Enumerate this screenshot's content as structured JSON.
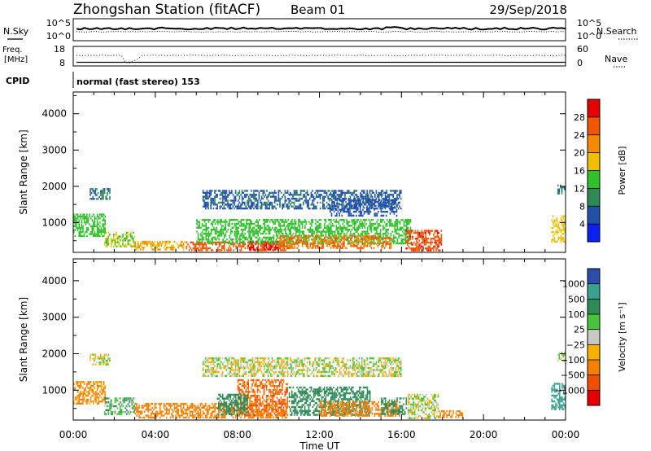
{
  "header": {
    "station": "Zhongshan Station (fitACF)",
    "beam": "Beam 01",
    "date": "29/Sep/2018"
  },
  "sky_panel": {
    "left_label": "N.Sky",
    "left_ticks": [
      "10^5",
      "10^0"
    ],
    "right_label": "N.Search",
    "right_ticks": [
      "10^5",
      "10^0"
    ]
  },
  "freq_panel": {
    "left_label_1": "Freq.",
    "left_label_2": "[MHz]",
    "left_ticks": [
      "18",
      "8"
    ],
    "right_label": "Nave",
    "right_ticks": [
      "60",
      "0"
    ]
  },
  "cpid": {
    "label": "CPID",
    "value": "normal (fast stereo) 153"
  },
  "time_axis": {
    "label": "Time UT",
    "ticks": [
      "00:00",
      "04:00",
      "08:00",
      "12:00",
      "16:00",
      "20:00",
      "00:00"
    ]
  },
  "colors": {
    "power": [
      "#0a20f0",
      "#2050a8",
      "#2e8a55",
      "#2fc02a",
      "#f0c000",
      "#f48a00",
      "#f25500",
      "#e80000"
    ],
    "velocity": [
      "#e80000",
      "#f24e00",
      "#f57f00",
      "#f7b000",
      "#c9c9c3",
      "#47c43a",
      "#2e8b58",
      "#3aa090",
      "#2b4ea8"
    ]
  },
  "chart_data": [
    {
      "type": "heatmap",
      "title": "",
      "quantity": "Power",
      "ylabel": "Slant Range [km]",
      "xlabel": "Time UT",
      "yticks": [
        1000,
        2000,
        3000,
        4000
      ],
      "ylim": [
        180,
        4600
      ],
      "xlim_hours": [
        0,
        24
      ],
      "colorbar": {
        "label": "Power [dB]",
        "ticks": [
          "4",
          "8",
          "12",
          "16",
          "20",
          "24",
          "28"
        ],
        "range": [
          0,
          32
        ]
      },
      "regions": [
        {
          "t0": 0.0,
          "t1": 1.6,
          "r0": 600,
          "r1": 1250,
          "level": 14
        },
        {
          "t0": 1.5,
          "t1": 3.0,
          "r0": 320,
          "r1": 750,
          "level": 16
        },
        {
          "t0": 3.0,
          "t1": 5.5,
          "r0": 250,
          "r1": 500,
          "level": 20
        },
        {
          "t0": 5.5,
          "t1": 10.5,
          "r0": 230,
          "r1": 480,
          "level": 26
        },
        {
          "t0": 8.5,
          "t1": 10.0,
          "r0": 250,
          "r1": 500,
          "level": 29
        },
        {
          "t0": 6.0,
          "t1": 16.5,
          "r0": 400,
          "r1": 1100,
          "level": 14
        },
        {
          "t0": 10.0,
          "t1": 15.5,
          "r0": 250,
          "r1": 650,
          "level": 24
        },
        {
          "t0": 6.3,
          "t1": 16.0,
          "r0": 1350,
          "r1": 1900,
          "level": 7
        },
        {
          "t0": 12.5,
          "t1": 15.8,
          "r0": 1150,
          "r1": 1650,
          "level": 6
        },
        {
          "t0": 0.8,
          "t1": 1.8,
          "r0": 1600,
          "r1": 1950,
          "level": 8
        },
        {
          "t0": 16.2,
          "t1": 18.0,
          "r0": 200,
          "r1": 800,
          "level": 27
        },
        {
          "t0": 23.3,
          "t1": 24.0,
          "r0": 450,
          "r1": 1200,
          "level": 18
        },
        {
          "t0": 23.6,
          "t1": 24.0,
          "r0": 1800,
          "r1": 2050,
          "level": 8
        }
      ]
    },
    {
      "type": "heatmap",
      "title": "",
      "quantity": "Velocity",
      "ylabel": "Slant Range [km]",
      "xlabel": "Time UT",
      "yticks": [
        1000,
        2000,
        3000,
        4000
      ],
      "ylim": [
        180,
        4600
      ],
      "xlim_hours": [
        0,
        24
      ],
      "colorbar": {
        "label": "Velocity [m s⁻¹]",
        "ticks": [
          "1000",
          "500",
          "100",
          "25",
          "−25",
          "−100",
          "−500",
          "−1000"
        ],
        "range": [
          -1200,
          1200
        ]
      },
      "regions": [
        {
          "t0": 0.0,
          "t1": 1.6,
          "r0": 600,
          "r1": 1250,
          "level": -150
        },
        {
          "t0": 1.5,
          "t1": 3.0,
          "r0": 320,
          "r1": 800,
          "level": 80
        },
        {
          "t0": 3.0,
          "t1": 10.5,
          "r0": 230,
          "r1": 650,
          "level": -300
        },
        {
          "t0": 8.0,
          "t1": 10.5,
          "r0": 300,
          "r1": 1300,
          "level": -500
        },
        {
          "t0": 7.0,
          "t1": 8.5,
          "r0": 300,
          "r1": 900,
          "level": 300
        },
        {
          "t0": 10.5,
          "t1": 14.5,
          "r0": 300,
          "r1": 1100,
          "level": 200
        },
        {
          "t0": 12.0,
          "t1": 16.0,
          "r0": 250,
          "r1": 700,
          "level": -200
        },
        {
          "t0": 6.3,
          "t1": 16.0,
          "r0": 1350,
          "r1": 1900,
          "level": 0
        },
        {
          "t0": 0.8,
          "t1": 1.8,
          "r0": 1700,
          "r1": 2000,
          "level": 0
        },
        {
          "t0": 16.3,
          "t1": 17.8,
          "r0": 200,
          "r1": 900,
          "level": 5
        },
        {
          "t0": 15.0,
          "t1": 16.3,
          "r0": 300,
          "r1": 800,
          "level": 400
        },
        {
          "t0": 17.8,
          "t1": 19.0,
          "r0": 250,
          "r1": 450,
          "level": -200
        },
        {
          "t0": 23.3,
          "t1": 24.0,
          "r0": 450,
          "r1": 1200,
          "level": 600
        },
        {
          "t0": 23.6,
          "t1": 24.0,
          "r0": 1800,
          "r1": 2050,
          "level": 0
        }
      ]
    }
  ]
}
